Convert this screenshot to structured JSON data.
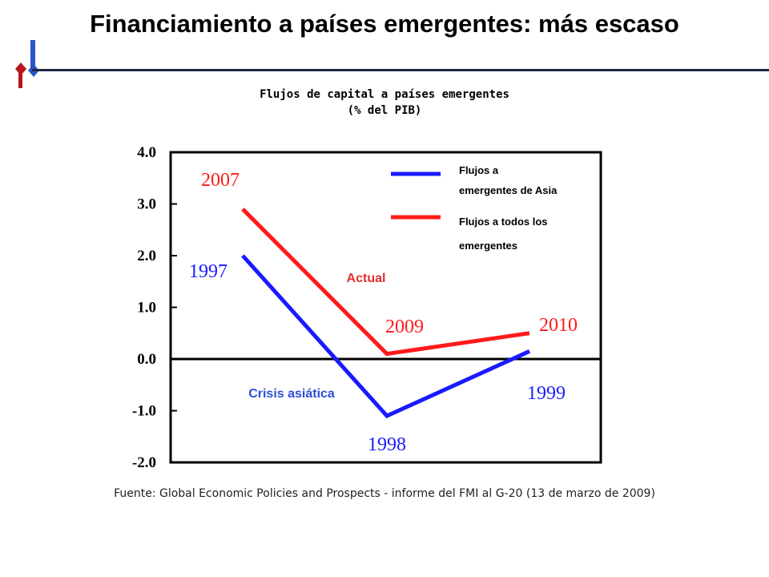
{
  "slide": {
    "title": "Financiamiento a países emergentes: más escaso",
    "source": "Fuente: Global Economic Policies and Prospects - informe del FMI al G-20 (13 de marzo de 2009)"
  },
  "colors": {
    "blue": "#1a1aff",
    "red": "#ff1a1a",
    "annot_red": "#e03030",
    "annot_blue": "#2d4fd6",
    "rule": "#1f2a44"
  },
  "chart_data": {
    "type": "line",
    "title": "Flujos de capital a países emergentes",
    "subtitle": "(% del PIB)",
    "ylim": [
      -2.0,
      4.0
    ],
    "yticks": [
      "4.0",
      "3.0",
      "2.0",
      "1.0",
      "0.0",
      "-1.0",
      "-2.0"
    ],
    "ytick_values": [
      4,
      3,
      2,
      1,
      0,
      -1,
      -2
    ],
    "x_positions": [
      0,
      1,
      2
    ],
    "series": [
      {
        "name": "Flujos a emergentes de Asia",
        "legend_lines": [
          "Flujos a",
          "emergentes de Asia"
        ],
        "color": "#1a1aff",
        "values": [
          2.0,
          -1.1,
          0.15
        ],
        "point_labels": [
          "1997",
          "1998",
          "1999"
        ]
      },
      {
        "name": "Flujos a todos los emergentes",
        "legend_lines": [
          "Flujos a todos los",
          "emergentes"
        ],
        "color": "#ff1a1a",
        "values": [
          2.9,
          0.1,
          0.5
        ],
        "point_labels": [
          "2007",
          "2009",
          "2010"
        ]
      }
    ],
    "annotations": [
      {
        "text": "Actual",
        "color": "#e03030"
      },
      {
        "text": "Crisis asiática",
        "color": "#2d4fd6"
      }
    ],
    "legend": "top-right",
    "grid": false
  }
}
